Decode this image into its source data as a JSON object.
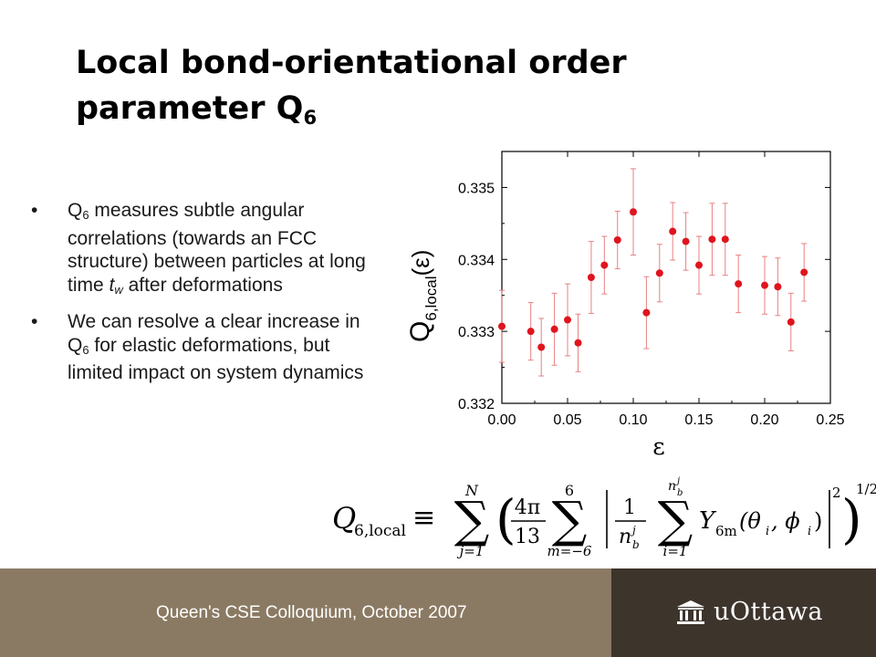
{
  "slide": {
    "title_main": "Local bond-orientational order parameter Q",
    "title_sub": "6",
    "bullets": [
      {
        "dot": "•",
        "parts": [
          {
            "t": "Q"
          },
          {
            "t": "6",
            "sub": true
          },
          {
            "t": " measures subtle angular correlations (towards an FCC structure) between particles at long time "
          },
          {
            "t": "t",
            "italic": true
          },
          {
            "t": "w",
            "sub": true,
            "italic": true
          },
          {
            "t": " after deformations"
          }
        ]
      },
      {
        "dot": "•",
        "parts": [
          {
            "t": "We can resolve a clear increase in Q"
          },
          {
            "t": "6",
            "sub": true
          },
          {
            "t": " for elastic deformations, but limited impact on system dynamics"
          }
        ]
      }
    ],
    "footer_text": "Queen's CSE Colloquium, October 2007",
    "logo_text": "uOttawa",
    "colors": {
      "footer_left": "#8b7a63",
      "footer_right": "#3d342c",
      "points": "#e0141e",
      "errorbars": "#e88080"
    }
  },
  "formula": {
    "lhs_Q": "Q",
    "lhs_sub": "6,local",
    "equiv": "≡",
    "sum1_top": "N",
    "sum1_bottom": "j=1",
    "frac1_num": "4π",
    "frac1_den": "13",
    "sum2_top": "6",
    "sum2_bottom": "m=−6",
    "frac2_num": "1",
    "frac2_den_n": "n",
    "frac2_den_sup": "j",
    "frac2_den_sub": "b",
    "sum3_top_n": "n",
    "sum3_top_sup": "j",
    "sum3_top_sub": "b",
    "sum3_bottom": "i=1",
    "Y": "Y",
    "Y_sub": "6m",
    "Y_args": "(θ",
    "Y_args_sub1": "i",
    "Y_args_mid": ", ϕ",
    "Y_args_sub2": "i",
    "Y_args_end": ")",
    "power_sup": "2",
    "outer_power": "1/2"
  },
  "chart_data": {
    "type": "scatter",
    "ylabel_main": "Q",
    "ylabel_sub": "6,local",
    "ylabel_arg": "(ε)",
    "xlabel": "ε",
    "xlim": [
      0.0,
      0.25
    ],
    "ylim": [
      0.332,
      0.3355
    ],
    "xticks": [
      "0.00",
      "0.05",
      "0.10",
      "0.15",
      "0.20",
      "0.25"
    ],
    "yticks": [
      "0.332",
      "0.333",
      "0.334",
      "0.335"
    ],
    "series": [
      {
        "points": [
          {
            "x": 0.0,
            "y": 0.33307,
            "err": 0.0005
          },
          {
            "x": 0.022,
            "y": 0.333,
            "err": 0.0004
          },
          {
            "x": 0.03,
            "y": 0.33278,
            "err": 0.0004
          },
          {
            "x": 0.04,
            "y": 0.33303,
            "err": 0.0005
          },
          {
            "x": 0.05,
            "y": 0.33316,
            "err": 0.0005
          },
          {
            "x": 0.058,
            "y": 0.33284,
            "err": 0.0004
          },
          {
            "x": 0.068,
            "y": 0.33375,
            "err": 0.0005
          },
          {
            "x": 0.078,
            "y": 0.33392,
            "err": 0.0004
          },
          {
            "x": 0.088,
            "y": 0.33427,
            "err": 0.0004
          },
          {
            "x": 0.1,
            "y": 0.33466,
            "err": 0.0006
          },
          {
            "x": 0.11,
            "y": 0.33326,
            "err": 0.0005
          },
          {
            "x": 0.12,
            "y": 0.33381,
            "err": 0.0004
          },
          {
            "x": 0.13,
            "y": 0.33439,
            "err": 0.0004
          },
          {
            "x": 0.14,
            "y": 0.33425,
            "err": 0.0004
          },
          {
            "x": 0.15,
            "y": 0.33392,
            "err": 0.0004
          },
          {
            "x": 0.16,
            "y": 0.33428,
            "err": 0.0005
          },
          {
            "x": 0.17,
            "y": 0.33428,
            "err": 0.0005
          },
          {
            "x": 0.18,
            "y": 0.33366,
            "err": 0.0004
          },
          {
            "x": 0.2,
            "y": 0.33364,
            "err": 0.0004
          },
          {
            "x": 0.21,
            "y": 0.33362,
            "err": 0.0004
          },
          {
            "x": 0.22,
            "y": 0.33313,
            "err": 0.0004
          },
          {
            "x": 0.23,
            "y": 0.33382,
            "err": 0.0004
          }
        ]
      }
    ],
    "grid": false
  }
}
